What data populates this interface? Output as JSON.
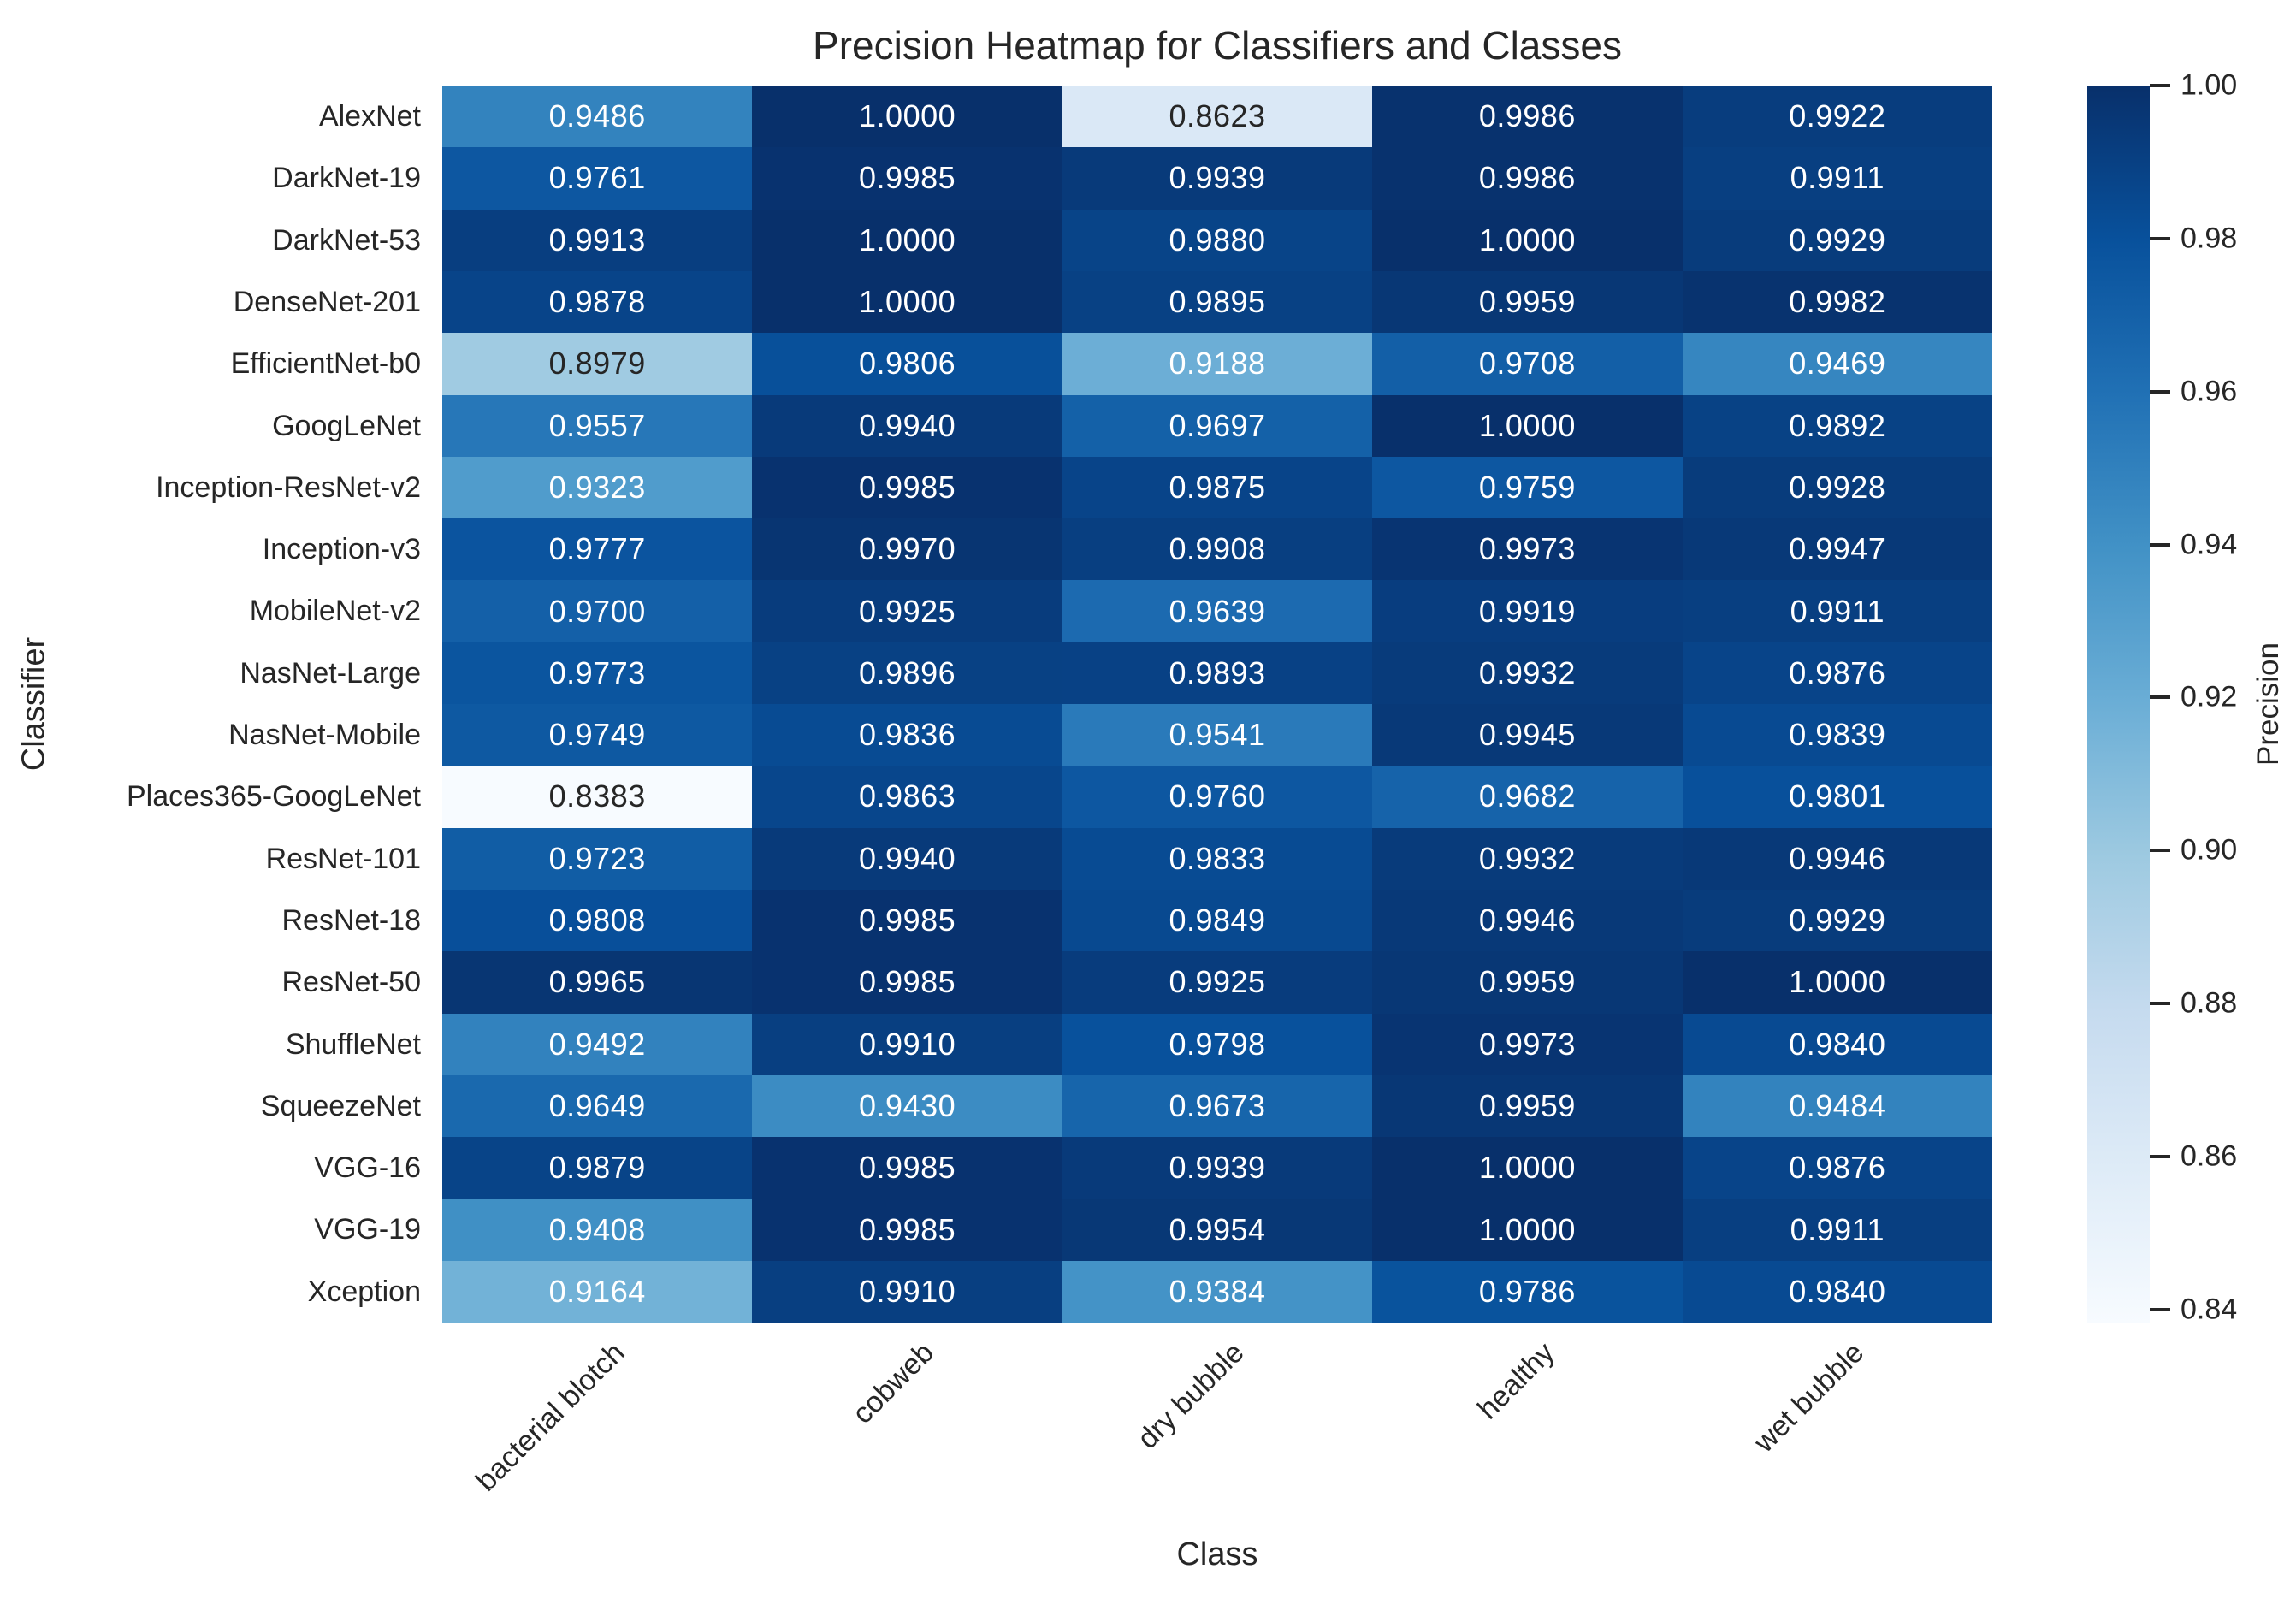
{
  "chart_data": {
    "type": "heatmap",
    "title": "Precision Heatmap for Classifiers and Classes",
    "xlabel": "Class",
    "ylabel": "Classifier",
    "categories": [
      "bacterial blotch",
      "cobweb",
      "dry bubble",
      "healthy",
      "wet bubble"
    ],
    "rows": [
      "AlexNet",
      "DarkNet-19",
      "DarkNet-53",
      "DenseNet-201",
      "EfficientNet-b0",
      "GoogLeNet",
      "Inception-ResNet-v2",
      "Inception-v3",
      "MobileNet-v2",
      "NasNet-Large",
      "NasNet-Mobile",
      "Places365-GoogLeNet",
      "ResNet-101",
      "ResNet-18",
      "ResNet-50",
      "ShuffleNet",
      "SqueezeNet",
      "VGG-16",
      "VGG-19",
      "Xception"
    ],
    "values": [
      [
        0.9486,
        1.0,
        0.8623,
        0.9986,
        0.9922
      ],
      [
        0.9761,
        0.9985,
        0.9939,
        0.9986,
        0.9911
      ],
      [
        0.9913,
        1.0,
        0.988,
        1.0,
        0.9929
      ],
      [
        0.9878,
        1.0,
        0.9895,
        0.9959,
        0.9982
      ],
      [
        0.8979,
        0.9806,
        0.9188,
        0.9708,
        0.9469
      ],
      [
        0.9557,
        0.994,
        0.9697,
        1.0,
        0.9892
      ],
      [
        0.9323,
        0.9985,
        0.9875,
        0.9759,
        0.9928
      ],
      [
        0.9777,
        0.997,
        0.9908,
        0.9973,
        0.9947
      ],
      [
        0.97,
        0.9925,
        0.9639,
        0.9919,
        0.9911
      ],
      [
        0.9773,
        0.9896,
        0.9893,
        0.9932,
        0.9876
      ],
      [
        0.9749,
        0.9836,
        0.9541,
        0.9945,
        0.9839
      ],
      [
        0.8383,
        0.9863,
        0.976,
        0.9682,
        0.9801
      ],
      [
        0.9723,
        0.994,
        0.9833,
        0.9932,
        0.9946
      ],
      [
        0.9808,
        0.9985,
        0.9849,
        0.9946,
        0.9929
      ],
      [
        0.9965,
        0.9985,
        0.9925,
        0.9959,
        1.0
      ],
      [
        0.9492,
        0.991,
        0.9798,
        0.9973,
        0.984
      ],
      [
        0.9649,
        0.943,
        0.9673,
        0.9959,
        0.9484
      ],
      [
        0.9879,
        0.9985,
        0.9939,
        1.0,
        0.9876
      ],
      [
        0.9408,
        0.9985,
        0.9954,
        1.0,
        0.9911
      ],
      [
        0.9164,
        0.991,
        0.9384,
        0.9786,
        0.984
      ]
    ],
    "annotation_decimals": 4,
    "colormap": "Blues",
    "colorbar": {
      "label": "Precision",
      "vmin": 0.8383,
      "vmax": 1.0,
      "tick_labels": [
        "1.00",
        "0.98",
        "0.96",
        "0.94",
        "0.92",
        "0.90",
        "0.88",
        "0.86",
        "0.84"
      ],
      "tick_values": [
        1.0,
        0.98,
        0.96,
        0.94,
        0.92,
        0.9,
        0.88,
        0.86,
        0.84
      ]
    },
    "colors": {
      "annotation_light": "#ffffff",
      "annotation_dark": "#262626",
      "text": "#262626",
      "background": "#ffffff"
    }
  }
}
